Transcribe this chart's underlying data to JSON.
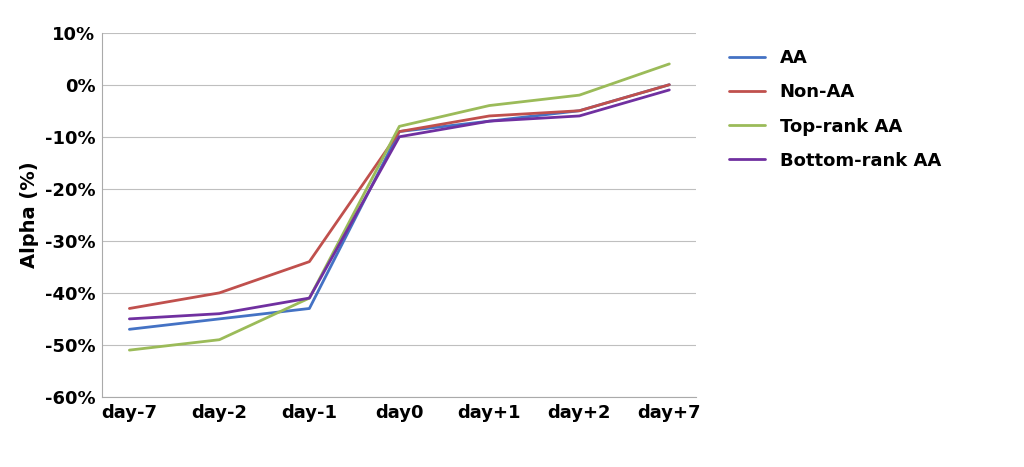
{
  "x_labels": [
    "day-7",
    "day-2",
    "day-1",
    "day0",
    "day+1",
    "day+2",
    "day+7"
  ],
  "x_values": [
    0,
    1,
    2,
    3,
    4,
    5,
    6
  ],
  "series": [
    {
      "name": "AA",
      "color": "#4472C4",
      "values": [
        -47,
        -45,
        -43,
        -9,
        -7,
        -5,
        0
      ]
    },
    {
      "name": "Non-AA",
      "color": "#C0504D",
      "values": [
        -43,
        -40,
        -34,
        -9,
        -6,
        -5,
        0
      ]
    },
    {
      "name": "Top-rank AA",
      "color": "#9BBB59",
      "values": [
        -51,
        -49,
        -41,
        -8,
        -4,
        -2,
        4
      ]
    },
    {
      "name": "Bottom-rank AA",
      "color": "#7030A0",
      "values": [
        -45,
        -44,
        -41,
        -10,
        -7,
        -6,
        -1
      ]
    }
  ],
  "ylabel": "Alpha (%)",
  "ylim": [
    -60,
    10
  ],
  "yticks": [
    -60,
    -50,
    -40,
    -30,
    -20,
    -10,
    0,
    10
  ],
  "ytick_labels": [
    "-60%",
    "-50%",
    "-40%",
    "-30%",
    "-20%",
    "-10%",
    "0%",
    "10%"
  ],
  "background_color": "#FFFFFF",
  "plot_bg_color": "#FFFFFF",
  "grid_color": "#BFBFBF",
  "line_width": 2.0,
  "figsize": [
    10.24,
    4.67
  ],
  "dpi": 100,
  "font_family": "DejaVu Sans",
  "tick_fontsize": 13,
  "ylabel_fontsize": 14,
  "legend_fontsize": 13,
  "legend_labelspacing": 0.9,
  "legend_handlelength": 2.0
}
